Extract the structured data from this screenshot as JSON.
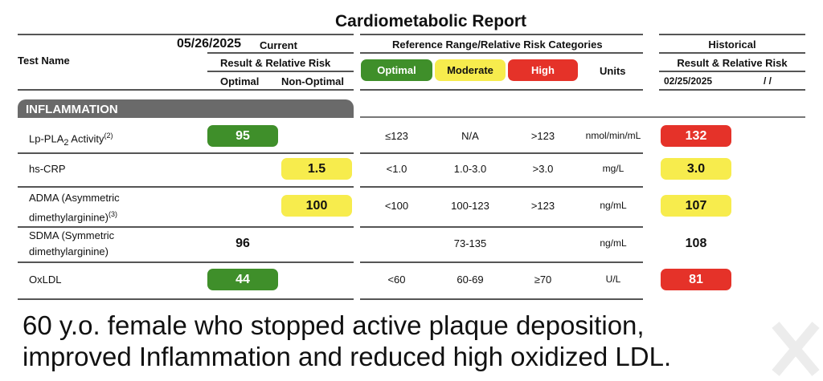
{
  "title": "Cardiometabolic Report",
  "header": {
    "date": "05/26/2025",
    "current": "Current",
    "test_name": "Test Name",
    "result_risk": "Result & Relative Risk",
    "optimal": "Optimal",
    "non_optimal": "Non-Optimal",
    "reference": "Reference Range/Relative Risk Categories",
    "cat_optimal": "Optimal",
    "cat_moderate": "Moderate",
    "cat_high": "High",
    "units": "Units",
    "historical": "Historical",
    "hist_result_risk": "Result & Relative Risk",
    "hist_date": "02/25/2025",
    "hist_date2": "/ /"
  },
  "section": "INFLAMMATION",
  "colors": {
    "optimal": "#3f8f2a",
    "moderate": "#f7ec4d",
    "high": "#e53229"
  },
  "rows": [
    {
      "name": "Lp-PLA",
      "sub": "2",
      "name2": " Activity",
      "sup": "(2)",
      "current": "95",
      "current_risk": "optimal",
      "opt": "≤123",
      "mod": "N/A",
      "high": ">123",
      "units": "nmol/min/mL",
      "hist": "132",
      "hist_risk": "high"
    },
    {
      "name": "hs-CRP",
      "current": "1.5",
      "current_risk": "moderate",
      "opt": "<1.0",
      "mod": "1.0-3.0",
      "high": ">3.0",
      "units": "mg/L",
      "hist": "3.0",
      "hist_risk": "moderate"
    },
    {
      "name": "ADMA (Asymmetric",
      "name2": "dimethylarginine)",
      "sup": "(3)",
      "current": "100",
      "current_risk": "moderate",
      "opt": "<100",
      "mod": "100-123",
      "high": ">123",
      "units": "ng/mL",
      "hist": "107",
      "hist_risk": "moderate"
    },
    {
      "name": "SDMA (Symmetric",
      "name2": "dimethylarginine)",
      "current": "96",
      "current_risk": "none",
      "opt": "",
      "mod": "73-135",
      "high": "",
      "units": "ng/mL",
      "hist": "108",
      "hist_risk": "none"
    },
    {
      "name": "OxLDL",
      "current": "44",
      "current_risk": "optimal",
      "opt": "<60",
      "mod": "60-69",
      "high": "≥70",
      "units": "U/L",
      "hist": "81",
      "hist_risk": "high"
    }
  ],
  "caption": {
    "line1": "60 y.o. female who stopped active plaque deposition,",
    "line2": "improved Inflammation and reduced high oxidized LDL."
  }
}
